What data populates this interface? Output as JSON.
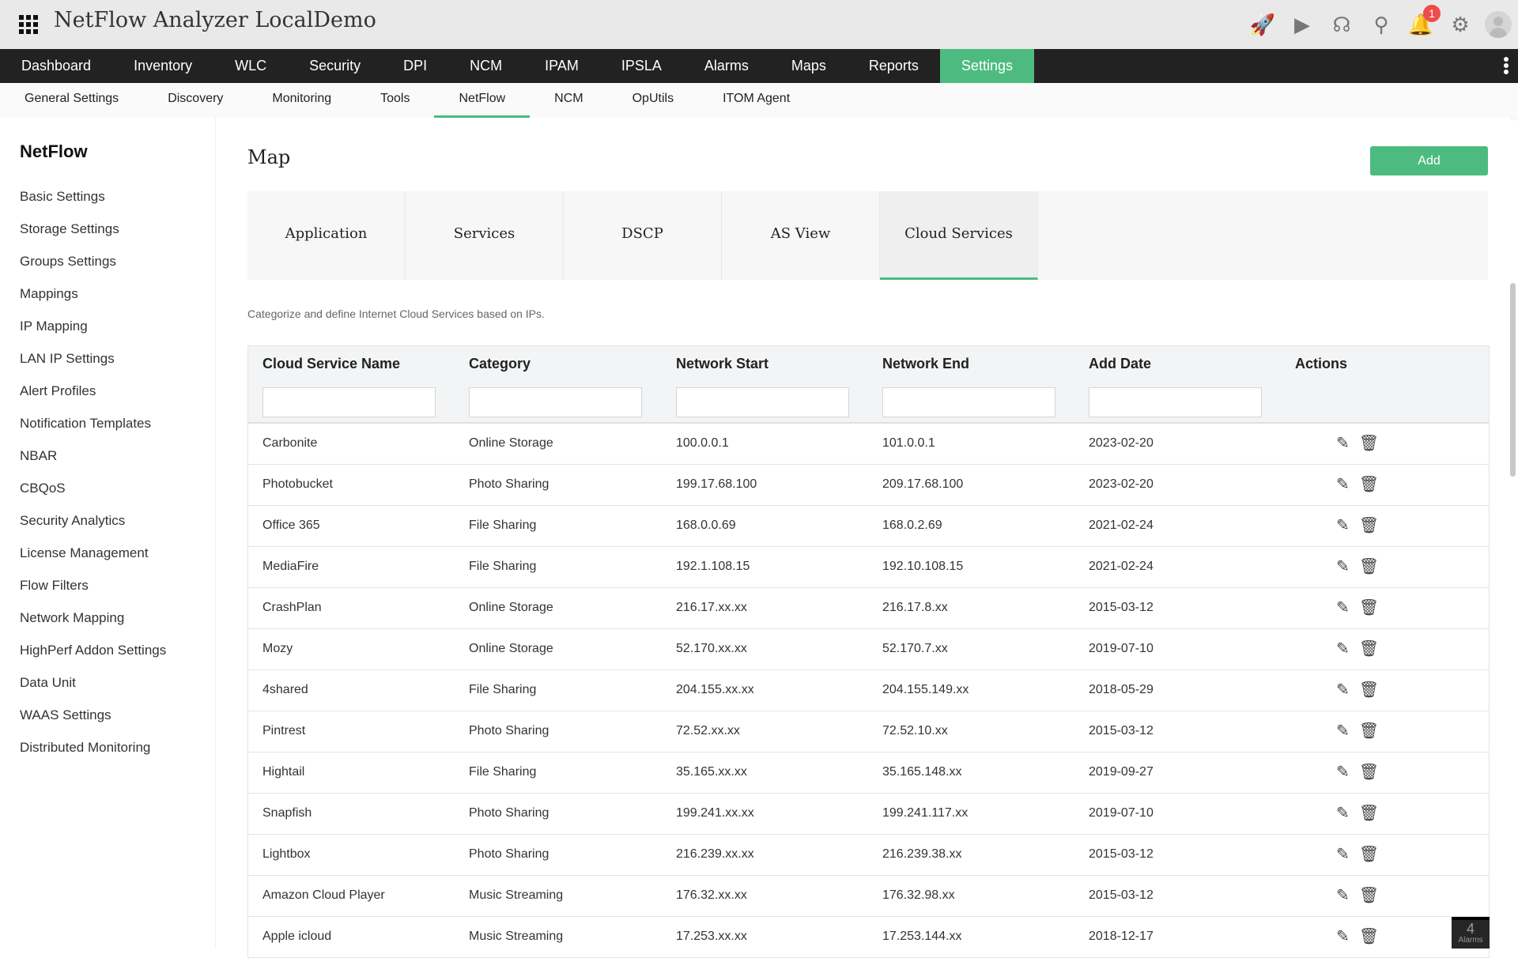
{
  "app": {
    "title": "NetFlow Analyzer LocalDemo",
    "notification_count": "1",
    "accent": "#4dbb7f"
  },
  "nav": [
    "Dashboard",
    "Inventory",
    "WLC",
    "Security",
    "DPI",
    "NCM",
    "IPAM",
    "IPSLA",
    "Alarms",
    "Maps",
    "Reports",
    "Settings"
  ],
  "nav_active": "Settings",
  "subnav": [
    "General Settings",
    "Discovery",
    "Monitoring",
    "Tools",
    "NetFlow",
    "NCM",
    "OpUtils",
    "ITOM Agent"
  ],
  "subnav_active": "NetFlow",
  "sidebar": {
    "title": "NetFlow",
    "items": [
      "Basic Settings",
      "Storage Settings",
      "Groups Settings",
      "Mappings",
      "IP Mapping",
      "LAN IP Settings",
      "Alert Profiles",
      "Notification Templates",
      "NBAR",
      "CBQoS",
      "Security Analytics",
      "License Management",
      "Flow Filters",
      "Network Mapping",
      "HighPerf Addon Settings",
      "Data Unit",
      "WAAS Settings",
      "Distributed Monitoring"
    ]
  },
  "main": {
    "title": "Map",
    "add_label": "Add",
    "tabs": [
      "Application",
      "Services",
      "DSCP",
      "AS View",
      "Cloud Services"
    ],
    "active_tab": "Cloud Services",
    "description": "Categorize and define Internet Cloud Services based on IPs."
  },
  "table": {
    "columns": [
      "Cloud Service Name",
      "Category",
      "Network Start",
      "Network End",
      "Add Date",
      "Actions"
    ],
    "rows": [
      [
        "Carbonite",
        "Online Storage",
        "100.0.0.1",
        "101.0.0.1",
        "2023-02-20"
      ],
      [
        "Photobucket",
        "Photo Sharing",
        "199.17.68.100",
        "209.17.68.100",
        "2023-02-20"
      ],
      [
        "Office 365",
        "File Sharing",
        "168.0.0.69",
        "168.0.2.69",
        "2021-02-24"
      ],
      [
        "MediaFire",
        "File Sharing",
        "192.1.108.15",
        "192.10.108.15",
        "2021-02-24"
      ],
      [
        "CrashPlan",
        "Online Storage",
        "216.17.xx.xx",
        "216.17.8.xx",
        "2015-03-12"
      ],
      [
        "Mozy",
        "Online Storage",
        "52.170.xx.xx",
        "52.170.7.xx",
        "2019-07-10"
      ],
      [
        "4shared",
        "File Sharing",
        "204.155.xx.xx",
        "204.155.149.xx",
        "2018-05-29"
      ],
      [
        "Pintrest",
        "Photo Sharing",
        "72.52.xx.xx",
        "72.52.10.xx",
        "2015-03-12"
      ],
      [
        "Hightail",
        "File Sharing",
        "35.165.xx.xx",
        "35.165.148.xx",
        "2019-09-27"
      ],
      [
        "Snapfish",
        "Photo Sharing",
        "199.241.xx.xx",
        "199.241.117.xx",
        "2019-07-10"
      ],
      [
        "Lightbox",
        "Photo Sharing",
        "216.239.xx.xx",
        "216.239.38.xx",
        "2015-03-12"
      ],
      [
        "Amazon Cloud Player",
        "Music Streaming",
        "176.32.xx.xx",
        "176.32.98.xx",
        "2015-03-12"
      ],
      [
        "Apple icloud",
        "Music Streaming",
        "17.253.xx.xx",
        "17.253.144.xx",
        "2018-12-17"
      ]
    ]
  },
  "alarms": {
    "count": "4",
    "label": "Alarms"
  }
}
